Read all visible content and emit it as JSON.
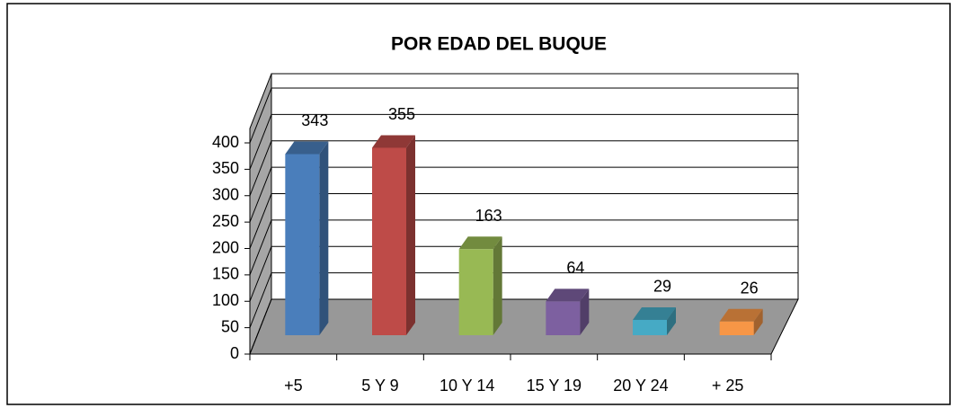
{
  "chart_data": {
    "type": "bar",
    "title": "POR EDAD DEL BUQUE",
    "categories": [
      "+5",
      "5 Y 9",
      "10 Y 14",
      "15 Y 19",
      "20 Y 24",
      "+ 25"
    ],
    "values": [
      343,
      355,
      163,
      64,
      29,
      26
    ],
    "colors": [
      "#4a7ebb",
      "#be4b48",
      "#98b954",
      "#7d60a0",
      "#46aac5",
      "#f79646"
    ],
    "ylim": [
      0,
      400
    ],
    "yticks": [
      0,
      50,
      100,
      150,
      200,
      250,
      300,
      350,
      400
    ],
    "grid": true
  }
}
